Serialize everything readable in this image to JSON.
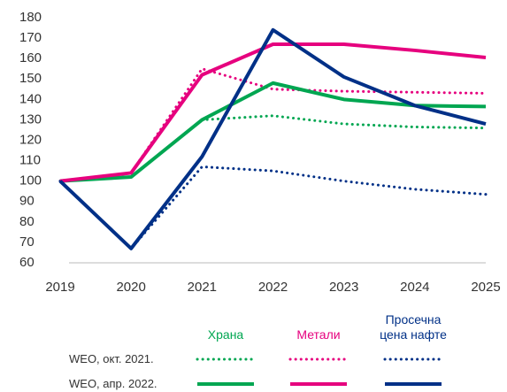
{
  "chart_data": {
    "type": "line",
    "x": [
      2019,
      2020,
      2021,
      2022,
      2023,
      2024,
      2025
    ],
    "xlim": [
      2019,
      2025
    ],
    "xticks": [
      2019,
      2020,
      2021,
      2022,
      2023,
      2024,
      2025
    ],
    "ylim": [
      60,
      180
    ],
    "yticks": [
      60,
      70,
      80,
      90,
      100,
      110,
      120,
      130,
      140,
      150,
      160,
      170,
      180
    ],
    "editions": [
      {
        "label": "WEO, окт. 2021.",
        "style": "dotted"
      },
      {
        "label": "WEO, апр. 2022.",
        "style": "solid"
      }
    ],
    "series": [
      {
        "name": "Храна",
        "color": "#00a651",
        "values": [
          [
            100,
            102,
            130,
            132,
            128,
            126.5,
            126
          ],
          [
            100,
            102,
            130,
            148,
            140,
            137,
            136.5
          ]
        ]
      },
      {
        "name": "Метали",
        "color": "#e6007e",
        "values": [
          [
            100,
            104,
            155,
            145,
            144,
            143.5,
            143
          ],
          [
            100,
            104,
            152,
            167,
            167,
            164,
            160.5
          ]
        ]
      },
      {
        "name": "Просечна цена нафте",
        "color": "#003087",
        "values": [
          [
            100,
            67,
            107,
            105,
            100,
            96,
            93.5
          ],
          [
            100,
            67,
            112,
            174,
            151,
            137,
            128
          ]
        ]
      }
    ]
  }
}
